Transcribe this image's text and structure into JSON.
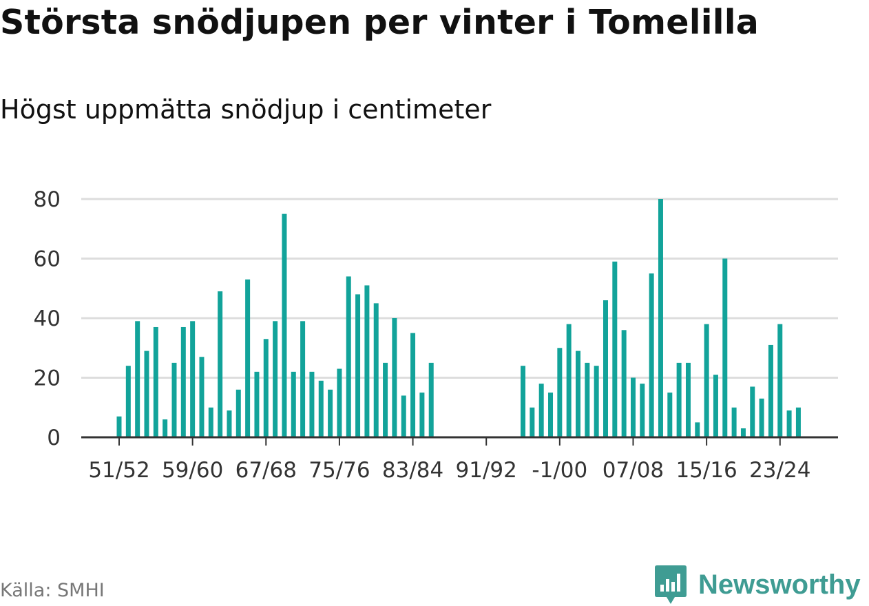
{
  "header": {
    "title": "Största snödjupen per vinter i Tomelilla",
    "subtitle": "Högst uppmätta snödjup i centimeter"
  },
  "footer": {
    "source": "Källa: SMHI",
    "brand": "Newsworthy",
    "brand_icon": "newsworthy-logo-icon"
  },
  "colors": {
    "bar": "#12a39a",
    "grid": "#dddddd",
    "axis": "#333333",
    "brand": "#3f9c93"
  },
  "chart_data": {
    "type": "bar",
    "title": "Största snödjupen per vinter i Tomelilla",
    "subtitle": "Högst uppmätta snödjup i centimeter",
    "xlabel": "",
    "ylabel": "",
    "ylim": [
      0,
      80
    ],
    "yticks": [
      0,
      20,
      40,
      60,
      80
    ],
    "xtick_labels": [
      "51/52",
      "59/60",
      "67/68",
      "75/76",
      "83/84",
      "91/92",
      "-1/00",
      "07/08",
      "15/16",
      "23/24"
    ],
    "grid": true,
    "categories": [
      "51/52",
      "52/53",
      "53/54",
      "54/55",
      "55/56",
      "56/57",
      "57/58",
      "58/59",
      "59/60",
      "60/61",
      "61/62",
      "62/63",
      "63/64",
      "64/65",
      "65/66",
      "66/67",
      "67/68",
      "68/69",
      "69/70",
      "70/71",
      "71/72",
      "72/73",
      "73/74",
      "74/75",
      "75/76",
      "76/77",
      "77/78",
      "78/79",
      "79/80",
      "80/81",
      "81/82",
      "82/83",
      "83/84",
      "84/85",
      "85/86",
      "86/87",
      "87/88",
      "88/89",
      "89/90",
      "90/91",
      "91/92",
      "92/93",
      "93/94",
      "94/95",
      "95/96",
      "96/97",
      "97/98",
      "98/99",
      "99/00",
      "00/01",
      "01/02",
      "02/03",
      "03/04",
      "04/05",
      "05/06",
      "06/07",
      "07/08",
      "08/09",
      "09/10",
      "10/11",
      "11/12",
      "12/13",
      "13/14",
      "14/15",
      "15/16",
      "16/17",
      "17/18",
      "18/19",
      "19/20",
      "20/21",
      "21/22",
      "22/23",
      "23/24",
      "24/25",
      "25/26"
    ],
    "values": [
      7,
      24,
      39,
      29,
      37,
      6,
      25,
      37,
      39,
      27,
      10,
      49,
      9,
      16,
      53,
      22,
      33,
      39,
      75,
      22,
      39,
      22,
      19,
      16,
      23,
      54,
      48,
      51,
      45,
      25,
      40,
      14,
      35,
      15,
      25,
      null,
      null,
      null,
      null,
      null,
      null,
      null,
      null,
      null,
      24,
      10,
      18,
      15,
      30,
      38,
      29,
      25,
      24,
      46,
      59,
      36,
      20,
      18,
      55,
      80,
      15,
      25,
      25,
      5,
      38,
      21,
      60,
      10,
      3,
      17,
      13,
      31,
      38,
      9,
      10
    ]
  }
}
